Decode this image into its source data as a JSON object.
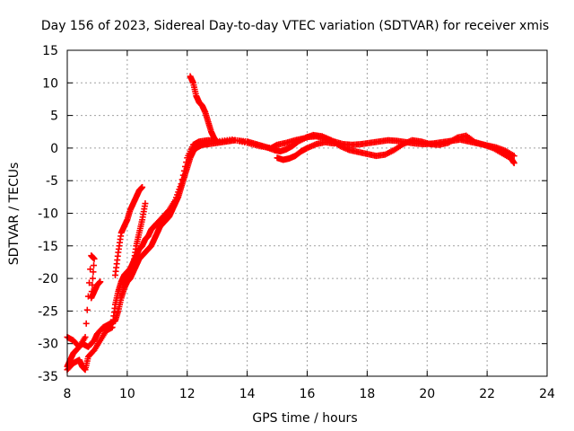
{
  "chart_data": {
    "type": "scatter",
    "title": "Day 156 of 2023, Sidereal Day-to-day VTEC variation (SDTVAR) for receiver xmis",
    "xlabel": "GPS time / hours",
    "ylabel": "SDTVAR / TECUs",
    "xlim": [
      8,
      24
    ],
    "ylim": [
      -35,
      15
    ],
    "xticks": [
      "8",
      "10",
      "12",
      "14",
      "16",
      "18",
      "20",
      "22",
      "24"
    ],
    "yticks": [
      "15",
      "10",
      "5",
      "0",
      "-5",
      "-10",
      "-15",
      "-20",
      "-25",
      "-30",
      "-35"
    ],
    "grid": true,
    "marker": "+",
    "color": "#ff0000",
    "series": [
      {
        "name": "track-main",
        "points": [
          [
            8.0,
            -33.5
          ],
          [
            8.1,
            -32.5
          ],
          [
            8.2,
            -31.5
          ],
          [
            8.3,
            -31.0
          ],
          [
            8.5,
            -30.0
          ],
          [
            8.7,
            -30.5
          ],
          [
            8.9,
            -29.5
          ],
          [
            9.0,
            -28.5
          ],
          [
            9.2,
            -27.5
          ],
          [
            9.4,
            -27.0
          ],
          [
            9.6,
            -26.5
          ],
          [
            9.7,
            -25.0
          ],
          [
            9.8,
            -23.0
          ],
          [
            9.9,
            -21.5
          ],
          [
            10.0,
            -20.5
          ],
          [
            10.1,
            -20.0
          ],
          [
            10.2,
            -19.0
          ],
          [
            10.3,
            -18.0
          ],
          [
            10.4,
            -17.0
          ],
          [
            10.5,
            -16.5
          ],
          [
            10.6,
            -16.0
          ],
          [
            10.7,
            -15.5
          ],
          [
            10.8,
            -15.0
          ],
          [
            10.9,
            -14.0
          ],
          [
            11.0,
            -13.0
          ],
          [
            11.1,
            -12.0
          ],
          [
            11.2,
            -11.5
          ],
          [
            11.3,
            -11.0
          ],
          [
            11.4,
            -10.5
          ],
          [
            11.5,
            -9.5
          ],
          [
            11.6,
            -8.5
          ],
          [
            11.7,
            -7.5
          ],
          [
            11.8,
            -6.0
          ],
          [
            11.9,
            -4.5
          ],
          [
            12.0,
            -3.0
          ],
          [
            12.1,
            -1.5
          ],
          [
            12.2,
            -0.5
          ],
          [
            12.3,
            0.0
          ],
          [
            12.5,
            0.5
          ],
          [
            12.7,
            0.6
          ],
          [
            13.0,
            0.8
          ],
          [
            13.3,
            1.0
          ],
          [
            13.6,
            1.2
          ],
          [
            14.0,
            1.0
          ],
          [
            14.3,
            0.6
          ],
          [
            14.6,
            0.2
          ],
          [
            14.9,
            -0.3
          ],
          [
            15.1,
            -0.5
          ],
          [
            15.3,
            -0.2
          ],
          [
            15.5,
            0.3
          ],
          [
            15.7,
            1.0
          ],
          [
            16.0,
            1.7
          ],
          [
            16.3,
            1.8
          ],
          [
            16.6,
            1.5
          ],
          [
            16.9,
            1.0
          ],
          [
            17.2,
            0.6
          ],
          [
            17.5,
            0.5
          ],
          [
            17.8,
            0.6
          ],
          [
            18.1,
            0.8
          ],
          [
            18.4,
            1.0
          ],
          [
            18.7,
            1.2
          ],
          [
            19.0,
            1.1
          ],
          [
            19.3,
            0.9
          ],
          [
            19.6,
            0.7
          ],
          [
            19.9,
            0.6
          ],
          [
            20.2,
            0.7
          ],
          [
            20.5,
            0.9
          ],
          [
            20.8,
            1.1
          ],
          [
            21.1,
            1.3
          ],
          [
            21.4,
            1.0
          ],
          [
            21.7,
            0.7
          ],
          [
            22.0,
            0.4
          ],
          [
            22.3,
            0.1
          ],
          [
            22.6,
            -0.4
          ],
          [
            22.9,
            -1.2
          ]
        ]
      },
      {
        "name": "track-2",
        "points": [
          [
            8.0,
            -34.0
          ],
          [
            8.2,
            -33.0
          ],
          [
            8.4,
            -32.5
          ],
          [
            8.5,
            -33.5
          ],
          [
            8.6,
            -34.0
          ],
          [
            8.7,
            -32.0
          ],
          [
            8.9,
            -31.0
          ],
          [
            9.1,
            -29.5
          ],
          [
            9.3,
            -28.0
          ],
          [
            9.5,
            -27.5
          ],
          [
            9.6,
            -24.0
          ],
          [
            9.7,
            -22.0
          ],
          [
            9.8,
            -20.5
          ],
          [
            9.9,
            -19.5
          ],
          [
            10.0,
            -19.0
          ],
          [
            10.1,
            -18.5
          ],
          [
            10.2,
            -17.5
          ],
          [
            10.3,
            -16.5
          ],
          [
            10.4,
            -15.5
          ],
          [
            10.5,
            -15.0
          ],
          [
            10.6,
            -14.0
          ],
          [
            10.7,
            -13.5
          ],
          [
            10.8,
            -12.5
          ],
          [
            10.9,
            -12.0
          ],
          [
            11.0,
            -11.5
          ],
          [
            11.2,
            -10.5
          ],
          [
            11.4,
            -9.5
          ],
          [
            11.6,
            -8.0
          ],
          [
            11.8,
            -5.5
          ],
          [
            12.0,
            -1.5
          ],
          [
            12.2,
            0.5
          ],
          [
            12.4,
            1.0
          ],
          [
            12.7,
            1.2
          ],
          [
            13.0,
            1.0
          ],
          [
            13.5,
            1.3
          ],
          [
            14.0,
            0.8
          ],
          [
            14.4,
            0.3
          ],
          [
            14.8,
            0.0
          ],
          [
            15.0,
            0.5
          ],
          [
            15.3,
            0.8
          ],
          [
            15.6,
            1.2
          ],
          [
            15.9,
            1.5
          ],
          [
            16.2,
            2.0
          ],
          [
            16.5,
            1.8
          ],
          [
            16.8,
            1.2
          ],
          [
            17.1,
            0.3
          ],
          [
            17.4,
            -0.3
          ],
          [
            17.7,
            -0.6
          ],
          [
            18.0,
            -0.9
          ],
          [
            18.3,
            -1.2
          ],
          [
            18.6,
            -1.0
          ],
          [
            18.9,
            -0.3
          ],
          [
            19.2,
            0.6
          ],
          [
            19.5,
            1.2
          ],
          [
            19.8,
            1.0
          ],
          [
            20.1,
            0.6
          ],
          [
            20.4,
            0.5
          ],
          [
            20.7,
            0.8
          ],
          [
            21.0,
            1.6
          ],
          [
            21.3,
            1.9
          ],
          [
            21.6,
            0.9
          ],
          [
            21.9,
            0.5
          ],
          [
            22.2,
            0.0
          ],
          [
            22.5,
            -0.8
          ],
          [
            22.8,
            -1.6
          ],
          [
            22.9,
            -2.3
          ]
        ]
      },
      {
        "name": "track-3",
        "points": [
          [
            9.6,
            -19.5
          ],
          [
            9.7,
            -16.0
          ],
          [
            9.8,
            -13.0
          ],
          [
            9.9,
            -12.0
          ],
          [
            10.0,
            -11.0
          ],
          [
            10.1,
            -9.5
          ],
          [
            10.2,
            -8.5
          ],
          [
            10.3,
            -7.5
          ],
          [
            10.4,
            -6.5
          ],
          [
            10.5,
            -6.0
          ]
        ]
      },
      {
        "name": "track-4",
        "points": [
          [
            9.9,
            -21.0
          ],
          [
            10.0,
            -20.0
          ],
          [
            10.1,
            -19.0
          ],
          [
            10.2,
            -18.0
          ],
          [
            10.3,
            -15.0
          ],
          [
            10.4,
            -13.0
          ],
          [
            10.5,
            -11.0
          ],
          [
            10.6,
            -8.5
          ]
        ]
      },
      {
        "name": "track-5",
        "points": [
          [
            12.1,
            11.0
          ],
          [
            12.2,
            10.0
          ],
          [
            12.3,
            8.0
          ],
          [
            12.4,
            7.0
          ],
          [
            12.5,
            6.5
          ],
          [
            12.6,
            5.5
          ],
          [
            12.7,
            4.0
          ],
          [
            12.8,
            2.5
          ],
          [
            12.9,
            1.5
          ],
          [
            13.0,
            1.0
          ]
        ]
      },
      {
        "name": "track-6",
        "points": [
          [
            15.0,
            -1.5
          ],
          [
            15.2,
            -1.8
          ],
          [
            15.4,
            -1.6
          ],
          [
            15.6,
            -1.2
          ],
          [
            15.8,
            -0.5
          ],
          [
            16.0,
            0.0
          ],
          [
            16.3,
            0.6
          ],
          [
            16.6,
            0.9
          ],
          [
            16.9,
            0.7
          ]
        ]
      },
      {
        "name": "track-7",
        "points": [
          [
            8.0,
            -29.0
          ],
          [
            8.2,
            -29.5
          ],
          [
            8.4,
            -30.5
          ],
          [
            8.6,
            -29.0
          ],
          [
            8.8,
            -16.5
          ],
          [
            8.9,
            -17.0
          ],
          [
            8.8,
            -23.0
          ],
          [
            8.9,
            -22.0
          ],
          [
            9.0,
            -21.0
          ],
          [
            9.1,
            -20.5
          ]
        ]
      }
    ]
  }
}
